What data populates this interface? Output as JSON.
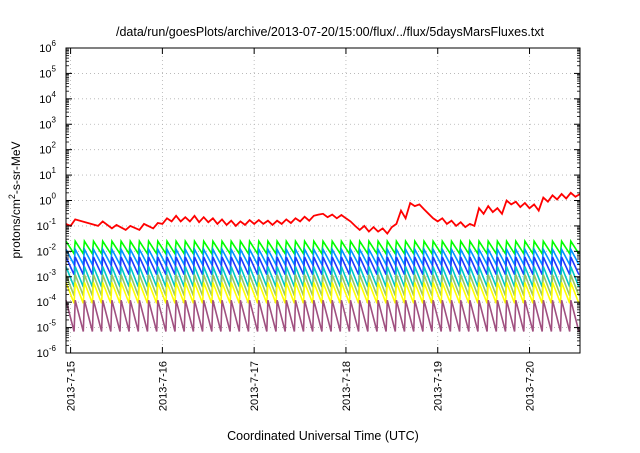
{
  "chart_data": {
    "type": "line",
    "title": "/data/run/goesPlots/archive/2013-07-20/15:00/flux/../flux/5daysMarsFluxes.txt",
    "xlabel": "Coordinated Universal Time (UTC)",
    "ylabel": {
      "prefix": "protons/cm",
      "sup": "2",
      "suffix": "-s-sr-MeV"
    },
    "x_ticks": [
      "2013-7-15",
      "2013-7-16",
      "2013-7-17",
      "2013-7-18",
      "2013-7-19",
      "2013-7-20"
    ],
    "x_start_tick": "2013-7-15",
    "x_range_days": [
      -0.05,
      5.55
    ],
    "y_scale": "log",
    "y_ticks": [
      {
        "base": "10",
        "exp": "-6"
      },
      {
        "base": "10",
        "exp": "-5"
      },
      {
        "base": "10",
        "exp": "-4"
      },
      {
        "base": "10",
        "exp": "-3"
      },
      {
        "base": "10",
        "exp": "-2"
      },
      {
        "base": "10",
        "exp": "-1"
      },
      {
        "base": "10",
        "exp": "0"
      },
      {
        "base": "10",
        "exp": "1"
      },
      {
        "base": "10",
        "exp": "2"
      },
      {
        "base": "10",
        "exp": "3"
      },
      {
        "base": "10",
        "exp": "4"
      },
      {
        "base": "10",
        "exp": "5"
      },
      {
        "base": "10",
        "exp": "6"
      }
    ],
    "y_range_log10": [
      -6,
      6
    ],
    "grid": true,
    "legend": "none",
    "top_series": {
      "color": "#ff0000",
      "points": [
        [
          -0.05,
          0.12
        ],
        [
          0.0,
          0.1
        ],
        [
          0.05,
          0.18
        ],
        [
          0.3,
          0.1
        ],
        [
          0.35,
          0.15
        ],
        [
          0.45,
          0.08
        ],
        [
          0.5,
          0.11
        ],
        [
          0.6,
          0.07
        ],
        [
          0.65,
          0.1
        ],
        [
          0.75,
          0.07
        ],
        [
          0.8,
          0.12
        ],
        [
          0.9,
          0.08
        ],
        [
          0.95,
          0.13
        ],
        [
          1.0,
          0.12
        ],
        [
          1.05,
          0.2
        ],
        [
          1.1,
          0.15
        ],
        [
          1.15,
          0.25
        ],
        [
          1.2,
          0.15
        ],
        [
          1.25,
          0.22
        ],
        [
          1.3,
          0.15
        ],
        [
          1.35,
          0.25
        ],
        [
          1.4,
          0.14
        ],
        [
          1.45,
          0.22
        ],
        [
          1.5,
          0.14
        ],
        [
          1.55,
          0.2
        ],
        [
          1.6,
          0.12
        ],
        [
          1.65,
          0.18
        ],
        [
          1.7,
          0.11
        ],
        [
          1.75,
          0.16
        ],
        [
          1.8,
          0.1
        ],
        [
          1.85,
          0.15
        ],
        [
          1.9,
          0.11
        ],
        [
          1.95,
          0.17
        ],
        [
          2.0,
          0.12
        ],
        [
          2.05,
          0.17
        ],
        [
          2.1,
          0.12
        ],
        [
          2.15,
          0.16
        ],
        [
          2.2,
          0.11
        ],
        [
          2.25,
          0.16
        ],
        [
          2.3,
          0.12
        ],
        [
          2.35,
          0.18
        ],
        [
          2.4,
          0.13
        ],
        [
          2.45,
          0.2
        ],
        [
          2.5,
          0.15
        ],
        [
          2.55,
          0.23
        ],
        [
          2.6,
          0.16
        ],
        [
          2.65,
          0.25
        ],
        [
          2.7,
          0.28
        ],
        [
          2.75,
          0.3
        ],
        [
          2.8,
          0.22
        ],
        [
          2.85,
          0.28
        ],
        [
          2.9,
          0.2
        ],
        [
          2.95,
          0.27
        ],
        [
          3.0,
          0.2
        ],
        [
          3.05,
          0.15
        ],
        [
          3.1,
          0.1
        ],
        [
          3.15,
          0.07
        ],
        [
          3.2,
          0.1
        ],
        [
          3.25,
          0.06
        ],
        [
          3.3,
          0.09
        ],
        [
          3.35,
          0.06
        ],
        [
          3.4,
          0.08
        ],
        [
          3.45,
          0.05
        ],
        [
          3.5,
          0.09
        ],
        [
          3.55,
          0.12
        ],
        [
          3.6,
          0.4
        ],
        [
          3.65,
          0.2
        ],
        [
          3.7,
          0.8
        ],
        [
          3.75,
          0.6
        ],
        [
          3.8,
          0.7
        ],
        [
          3.85,
          0.45
        ],
        [
          3.9,
          0.3
        ],
        [
          3.95,
          0.2
        ],
        [
          4.0,
          0.15
        ],
        [
          4.05,
          0.2
        ],
        [
          4.1,
          0.12
        ],
        [
          4.15,
          0.16
        ],
        [
          4.2,
          0.1
        ],
        [
          4.25,
          0.14
        ],
        [
          4.3,
          0.09
        ],
        [
          4.35,
          0.12
        ],
        [
          4.4,
          0.1
        ],
        [
          4.45,
          0.5
        ],
        [
          4.5,
          0.3
        ],
        [
          4.55,
          0.6
        ],
        [
          4.6,
          0.35
        ],
        [
          4.65,
          0.5
        ],
        [
          4.7,
          0.3
        ],
        [
          4.75,
          1.0
        ],
        [
          4.8,
          0.7
        ],
        [
          4.85,
          0.9
        ],
        [
          4.9,
          0.55
        ],
        [
          4.95,
          0.8
        ],
        [
          5.0,
          0.5
        ],
        [
          5.05,
          0.7
        ],
        [
          5.1,
          0.4
        ],
        [
          5.15,
          1.3
        ],
        [
          5.2,
          0.9
        ],
        [
          5.25,
          1.6
        ],
        [
          5.3,
          1.1
        ],
        [
          5.35,
          1.8
        ],
        [
          5.4,
          1.2
        ],
        [
          5.45,
          2.0
        ],
        [
          5.5,
          1.4
        ],
        [
          5.55,
          1.8
        ]
      ]
    },
    "periodic_series": {
      "period_days": 0.1,
      "first_peak_day": -0.05,
      "peak_fraction": 0.12,
      "bands": [
        {
          "color": "#00ff00",
          "peak": 0.025,
          "trough": 0.008
        },
        {
          "color": "#0096ff",
          "peak": 0.012,
          "trough": 0.003
        },
        {
          "color": "#1e3cff",
          "peak": 0.006,
          "trough": 0.0012
        },
        {
          "color": "#00c8c8",
          "peak": 0.0025,
          "trough": 0.0004
        },
        {
          "color": "#96c864",
          "peak": 0.0012,
          "trough": 0.00018
        },
        {
          "color": "#ffff00",
          "peak": 0.0006,
          "trough": 9e-05
        },
        {
          "color": "#a05080",
          "peak": 0.00012,
          "trough": 7e-06
        }
      ]
    }
  }
}
